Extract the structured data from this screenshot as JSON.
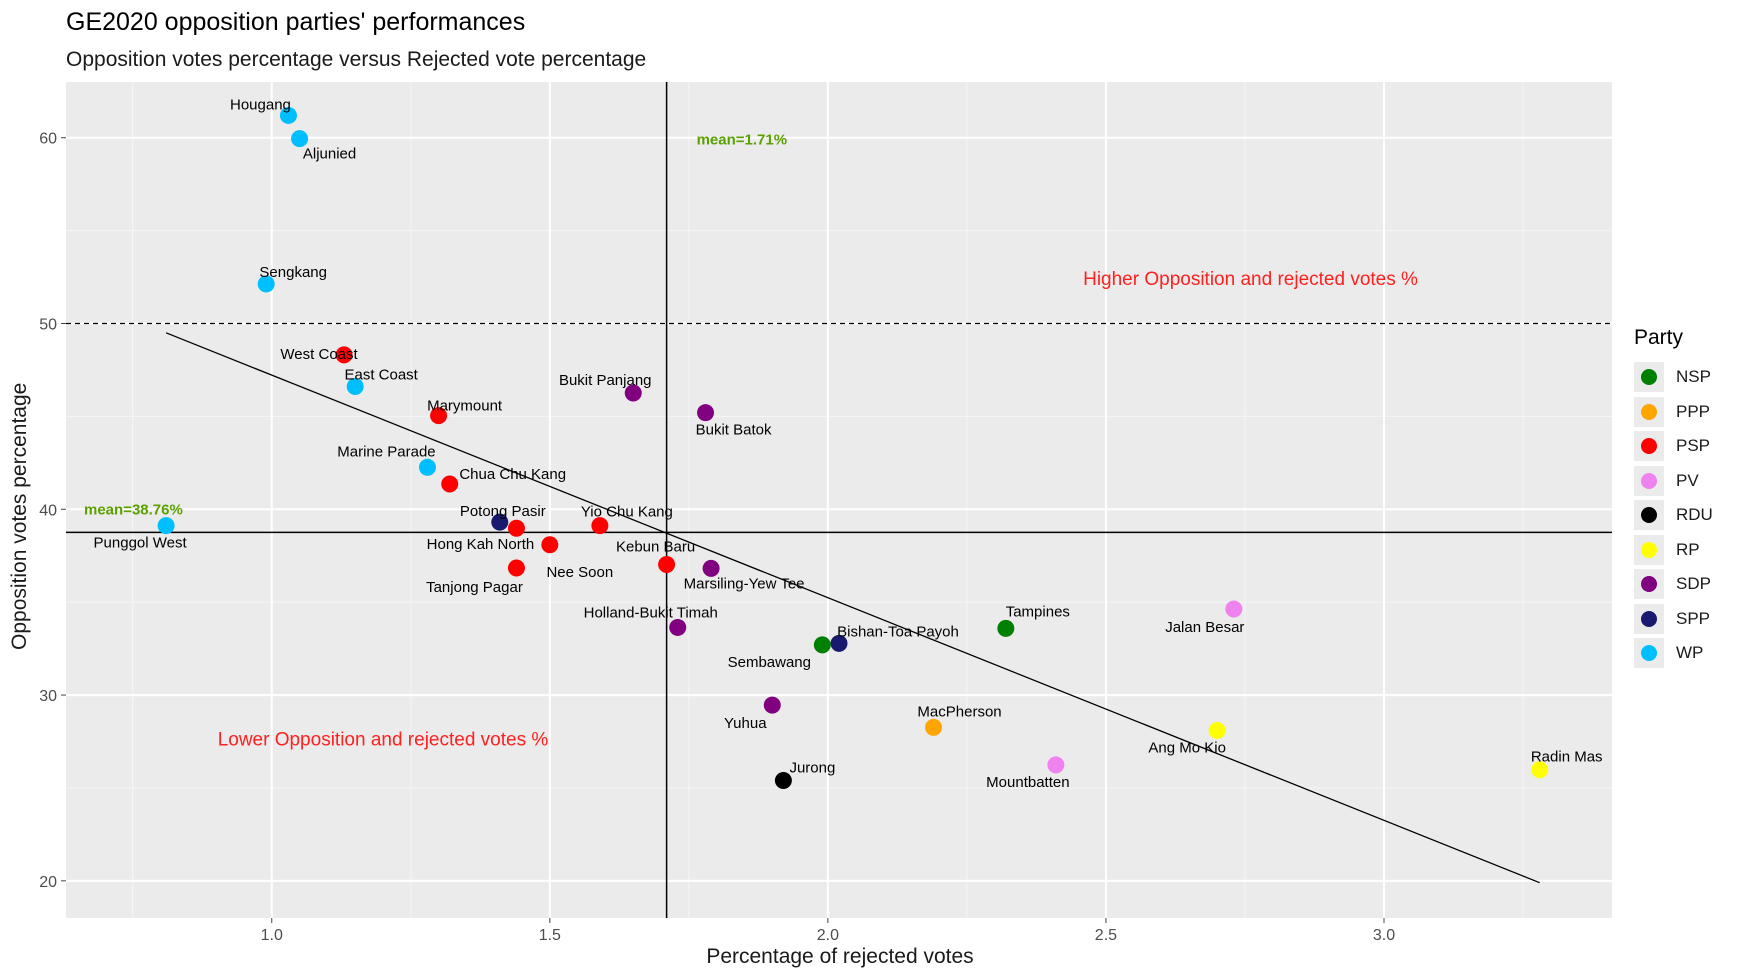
{
  "chart_data": {
    "type": "scatter",
    "title": "GE2020 opposition parties' performances",
    "subtitle": "Opposition votes percentage versus Rejected vote percentage",
    "xlabel": "Percentage of rejected votes",
    "ylabel": "Opposition votes percentage",
    "xlim": [
      0.63,
      3.41
    ],
    "ylim": [
      18,
      63
    ],
    "x_ticks": [
      1.0,
      1.5,
      2.0,
      2.5,
      3.0
    ],
    "x_tick_labels": [
      "1.0",
      "1.5",
      "2.0",
      "2.5",
      "3.0"
    ],
    "y_ticks": [
      20,
      30,
      40,
      50,
      60
    ],
    "y_tick_labels": [
      "20",
      "30",
      "40",
      "50",
      "60"
    ],
    "grid": true,
    "legend": {
      "title": "Party",
      "placement": "right",
      "entries": [
        {
          "name": "NSP",
          "color": "#008000"
        },
        {
          "name": "PPP",
          "color": "#FFA500"
        },
        {
          "name": "PSP",
          "color": "#FF0000"
        },
        {
          "name": "PV",
          "color": "#EE82EE"
        },
        {
          "name": "RDU",
          "color": "#000000"
        },
        {
          "name": "RP",
          "color": "#FFFF00"
        },
        {
          "name": "SDP",
          "color": "#800080"
        },
        {
          "name": "SPP",
          "color": "#191970"
        },
        {
          "name": "WP",
          "color": "#00BFFF"
        }
      ]
    },
    "points": [
      {
        "label": "Hougang",
        "party": "WP",
        "x": 1.03,
        "y": 61.2
      },
      {
        "label": "Aljunied",
        "party": "WP",
        "x": 1.05,
        "y": 59.95
      },
      {
        "label": "Sengkang",
        "party": "WP",
        "x": 0.99,
        "y": 52.13
      },
      {
        "label": "West Coast",
        "party": "PSP",
        "x": 1.13,
        "y": 48.31
      },
      {
        "label": "East Coast",
        "party": "WP",
        "x": 1.15,
        "y": 46.61
      },
      {
        "label": "Marymount",
        "party": "PSP",
        "x": 1.3,
        "y": 45.04
      },
      {
        "label": "Bukit Panjang",
        "party": "SDP",
        "x": 1.65,
        "y": 46.26
      },
      {
        "label": "Bukit Batok",
        "party": "SDP",
        "x": 1.78,
        "y": 45.2
      },
      {
        "label": "Marine Parade",
        "party": "WP",
        "x": 1.28,
        "y": 42.26
      },
      {
        "label": "Chua Chu Kang",
        "party": "PSP",
        "x": 1.32,
        "y": 41.36
      },
      {
        "label": "Potong Pasir",
        "party": "SPP",
        "x": 1.41,
        "y": 39.31
      },
      {
        "label": "Hong Kah North",
        "party": "PSP",
        "x": 1.44,
        "y": 38.98
      },
      {
        "label": "Nee Soon",
        "party": "PSP",
        "x": 1.5,
        "y": 38.09
      },
      {
        "label": "Yio Chu Kang",
        "party": "PSP",
        "x": 1.59,
        "y": 39.12
      },
      {
        "label": "Kebun Baru",
        "party": "PSP",
        "x": 1.71,
        "y": 37.03
      },
      {
        "label": "Tanjong Pagar",
        "party": "PSP",
        "x": 1.44,
        "y": 36.84
      },
      {
        "label": "Marsiling-Yew Tee",
        "party": "SDP",
        "x": 1.79,
        "y": 36.82
      },
      {
        "label": "Punggol West",
        "party": "WP",
        "x": 0.81,
        "y": 39.12
      },
      {
        "label": "Holland-Bukit Timah",
        "party": "SDP",
        "x": 1.73,
        "y": 33.64
      },
      {
        "label": "Bishan-Toa Payoh",
        "party": "SPP",
        "x": 2.02,
        "y": 32.78
      },
      {
        "label": "Sembawang",
        "party": "NSP",
        "x": 1.99,
        "y": 32.7
      },
      {
        "label": "Tampines",
        "party": "NSP",
        "x": 2.32,
        "y": 33.59
      },
      {
        "label": "Jalan Besar",
        "party": "PV",
        "x": 2.73,
        "y": 34.63
      },
      {
        "label": "Yuhua",
        "party": "SDP",
        "x": 1.9,
        "y": 29.46
      },
      {
        "label": "MacPherson",
        "party": "PPP",
        "x": 2.19,
        "y": 28.26
      },
      {
        "label": "Ang Mo Kio",
        "party": "RP",
        "x": 2.7,
        "y": 28.09
      },
      {
        "label": "Radin Mas",
        "party": "RP",
        "x": 3.28,
        "y": 25.98
      },
      {
        "label": "Mountbatten",
        "party": "PV",
        "x": 2.41,
        "y": 26.24
      },
      {
        "label": "Jurong",
        "party": "RDU",
        "x": 1.92,
        "y": 25.4
      }
    ],
    "trend_line": {
      "x": [
        0.81,
        3.28
      ],
      "y": [
        49.5,
        19.9
      ]
    },
    "mean_x": 1.71,
    "mean_y": 38.76,
    "mean_x_label": "mean=1.71%",
    "mean_y_label": "mean=38.76%",
    "threshold_y": 50,
    "annotations": [
      {
        "text": "Higher Opposition and rejected votes %",
        "x": 2.76,
        "y": 52.4,
        "color": "#FF2020"
      },
      {
        "text": "Lower Opposition and rejected votes %",
        "x": 1.2,
        "y": 27.6,
        "color": "#FF2020"
      }
    ]
  }
}
